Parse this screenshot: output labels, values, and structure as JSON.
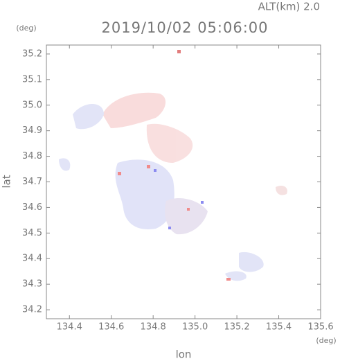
{
  "chart_data": {
    "type": "map",
    "altitude_label": "ALT(km) 2.0",
    "title": "2019/10/02 05:06:00",
    "y_unit": "(deg)",
    "x_unit": "(deg)",
    "xlabel": "lon",
    "ylabel": "lat",
    "xlim": [
      134.29,
      135.6
    ],
    "ylim": [
      34.165,
      35.235
    ],
    "xticks": [
      134.4,
      134.6,
      134.8,
      {
        "value": 135,
        "label": "135.0"
      },
      135.2,
      135.4,
      135.6
    ],
    "yticks": [
      34.2,
      34.3,
      34.4,
      34.5,
      34.6,
      34.7,
      34.8,
      34.9,
      {
        "value": 35,
        "label": "35.0"
      },
      35.1,
      35.2
    ]
  }
}
